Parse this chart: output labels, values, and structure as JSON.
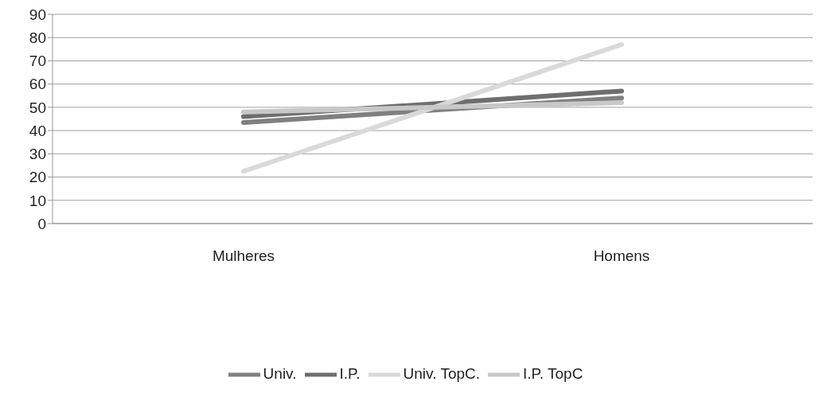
{
  "chart_data": {
    "type": "line",
    "categories": [
      "Mulheres",
      "Homens"
    ],
    "series": [
      {
        "name": "Univ.",
        "color": "#808080",
        "values": [
          43.5,
          54
        ]
      },
      {
        "name": "I.P.",
        "color": "#6e6e6e",
        "values": [
          46,
          57
        ]
      },
      {
        "name": "Univ. TopC.",
        "color": "#d9d9d9",
        "values": [
          22.5,
          77
        ]
      },
      {
        "name": "I.P. TopC",
        "color": "#c8c8c8",
        "values": [
          48,
          52
        ]
      }
    ],
    "ylim": [
      0,
      90
    ],
    "yticks": [
      0,
      10,
      20,
      30,
      40,
      50,
      60,
      70,
      80,
      90
    ],
    "grid": "y",
    "legend": "bottom",
    "marker": "none",
    "line_style": "solid"
  }
}
